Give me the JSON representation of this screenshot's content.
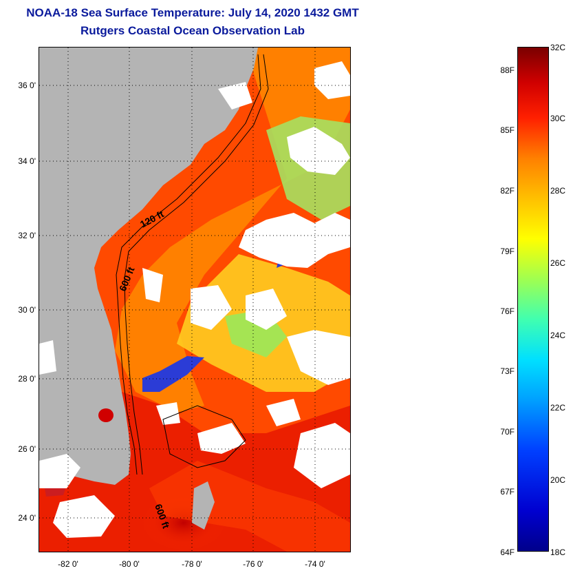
{
  "title_line1": "NOAA-18 Sea Surface Temperature:  July 14, 2020 1432 GMT",
  "title_line2": "Rutgers Coastal Ocean Observation Lab",
  "map": {
    "lat_labels": [
      "36 0'",
      "34 0'",
      "32 0'",
      "30 0'",
      "28 0'",
      "26 0'",
      "24 0'"
    ],
    "lon_labels": [
      "-82 0'",
      "-80 0'",
      "-78 0'",
      "-76 0'",
      "-74 0'"
    ],
    "contours": [
      "120 ft",
      "600 ft",
      "600 ft"
    ],
    "colors": {
      "land": "#b4b4b4",
      "cloud": "#ffffff",
      "warm": "#ff3a00",
      "hot": "#c80000",
      "orange": "#ff8c00",
      "yellow": "#ffd700",
      "green": "#9be85a",
      "cool": "#2b3cd6"
    }
  },
  "colorbar": {
    "celsius": [
      "32C",
      "30C",
      "28C",
      "26C",
      "24C",
      "22C",
      "20C",
      "18C"
    ],
    "fahrenheit": [
      "88F",
      "85F",
      "82F",
      "79F",
      "76F",
      "73F",
      "70F",
      "67F",
      "64F"
    ]
  }
}
